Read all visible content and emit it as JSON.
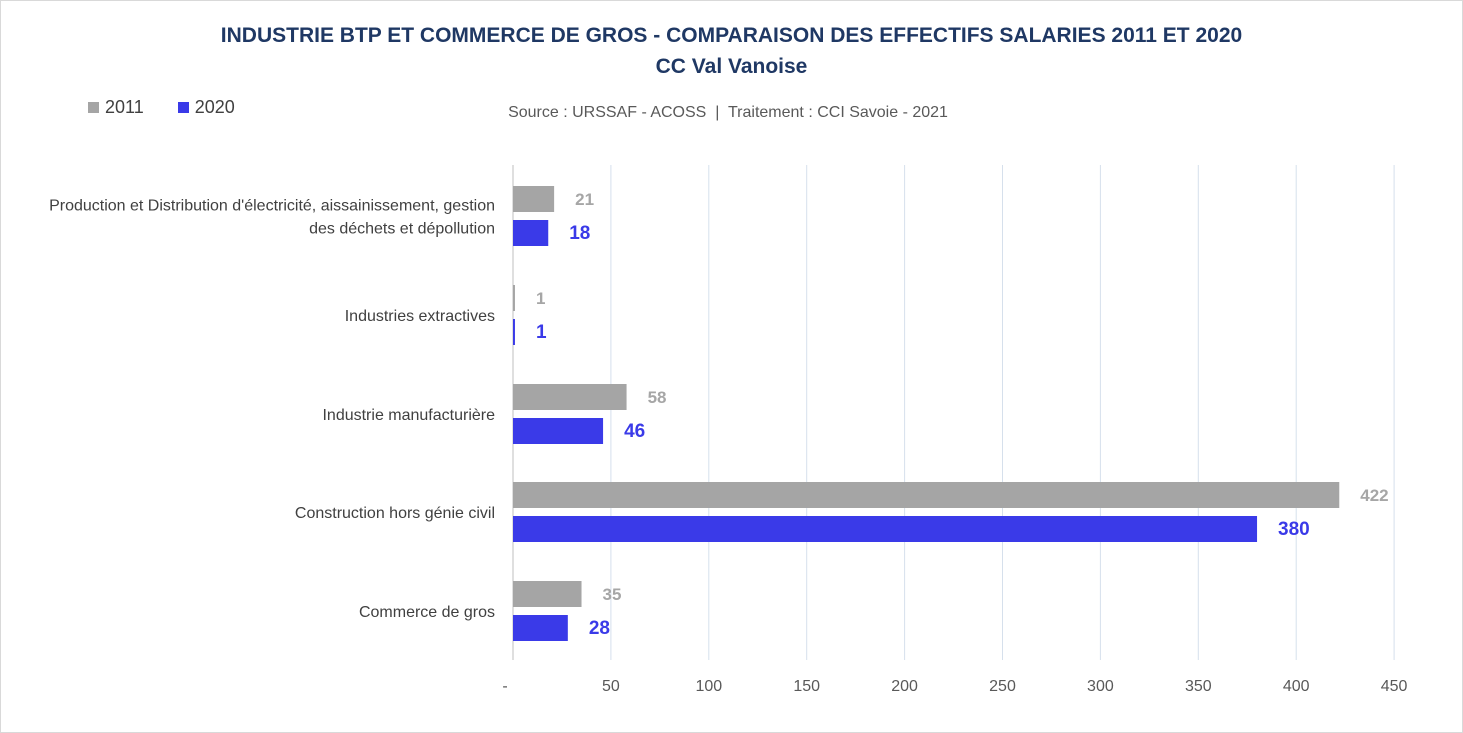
{
  "chart_data": {
    "type": "bar",
    "orientation": "horizontal",
    "title": "INDUSTRIE BTP ET COMMERCE DE GROS - COMPARAISON DES EFFECTIFS SALARIES 2011 ET 2020",
    "subtitle": "CC Val Vanoise",
    "source": "Source : URSSAF - ACOSS  |  Traitement : CCI Savoie - 2021",
    "categories": [
      [
        "Production et Distribution d'électricité, aissainissement, gestion",
        "des déchets et dépollution"
      ],
      [
        "Industries extractives"
      ],
      [
        "Industrie manufacturière"
      ],
      [
        "Construction hors génie civil"
      ],
      [
        "Commerce de gros"
      ]
    ],
    "series": [
      {
        "name": "2011",
        "color": "#a5a5a5",
        "label_color": "#a6a6a6",
        "values": [
          21,
          1,
          58,
          422,
          35
        ]
      },
      {
        "name": "2020",
        "color": "#3a3ae8",
        "label_color": "#3a3ae8",
        "values": [
          18,
          1,
          46,
          380,
          28
        ]
      }
    ],
    "xlim": [
      0,
      450
    ],
    "xticks": [
      "-",
      "50",
      "100",
      "150",
      "200",
      "250",
      "300",
      "350",
      "400",
      "450"
    ],
    "grid": true,
    "legend_position": "top-left",
    "gridline_color": "#d6e0ec"
  }
}
